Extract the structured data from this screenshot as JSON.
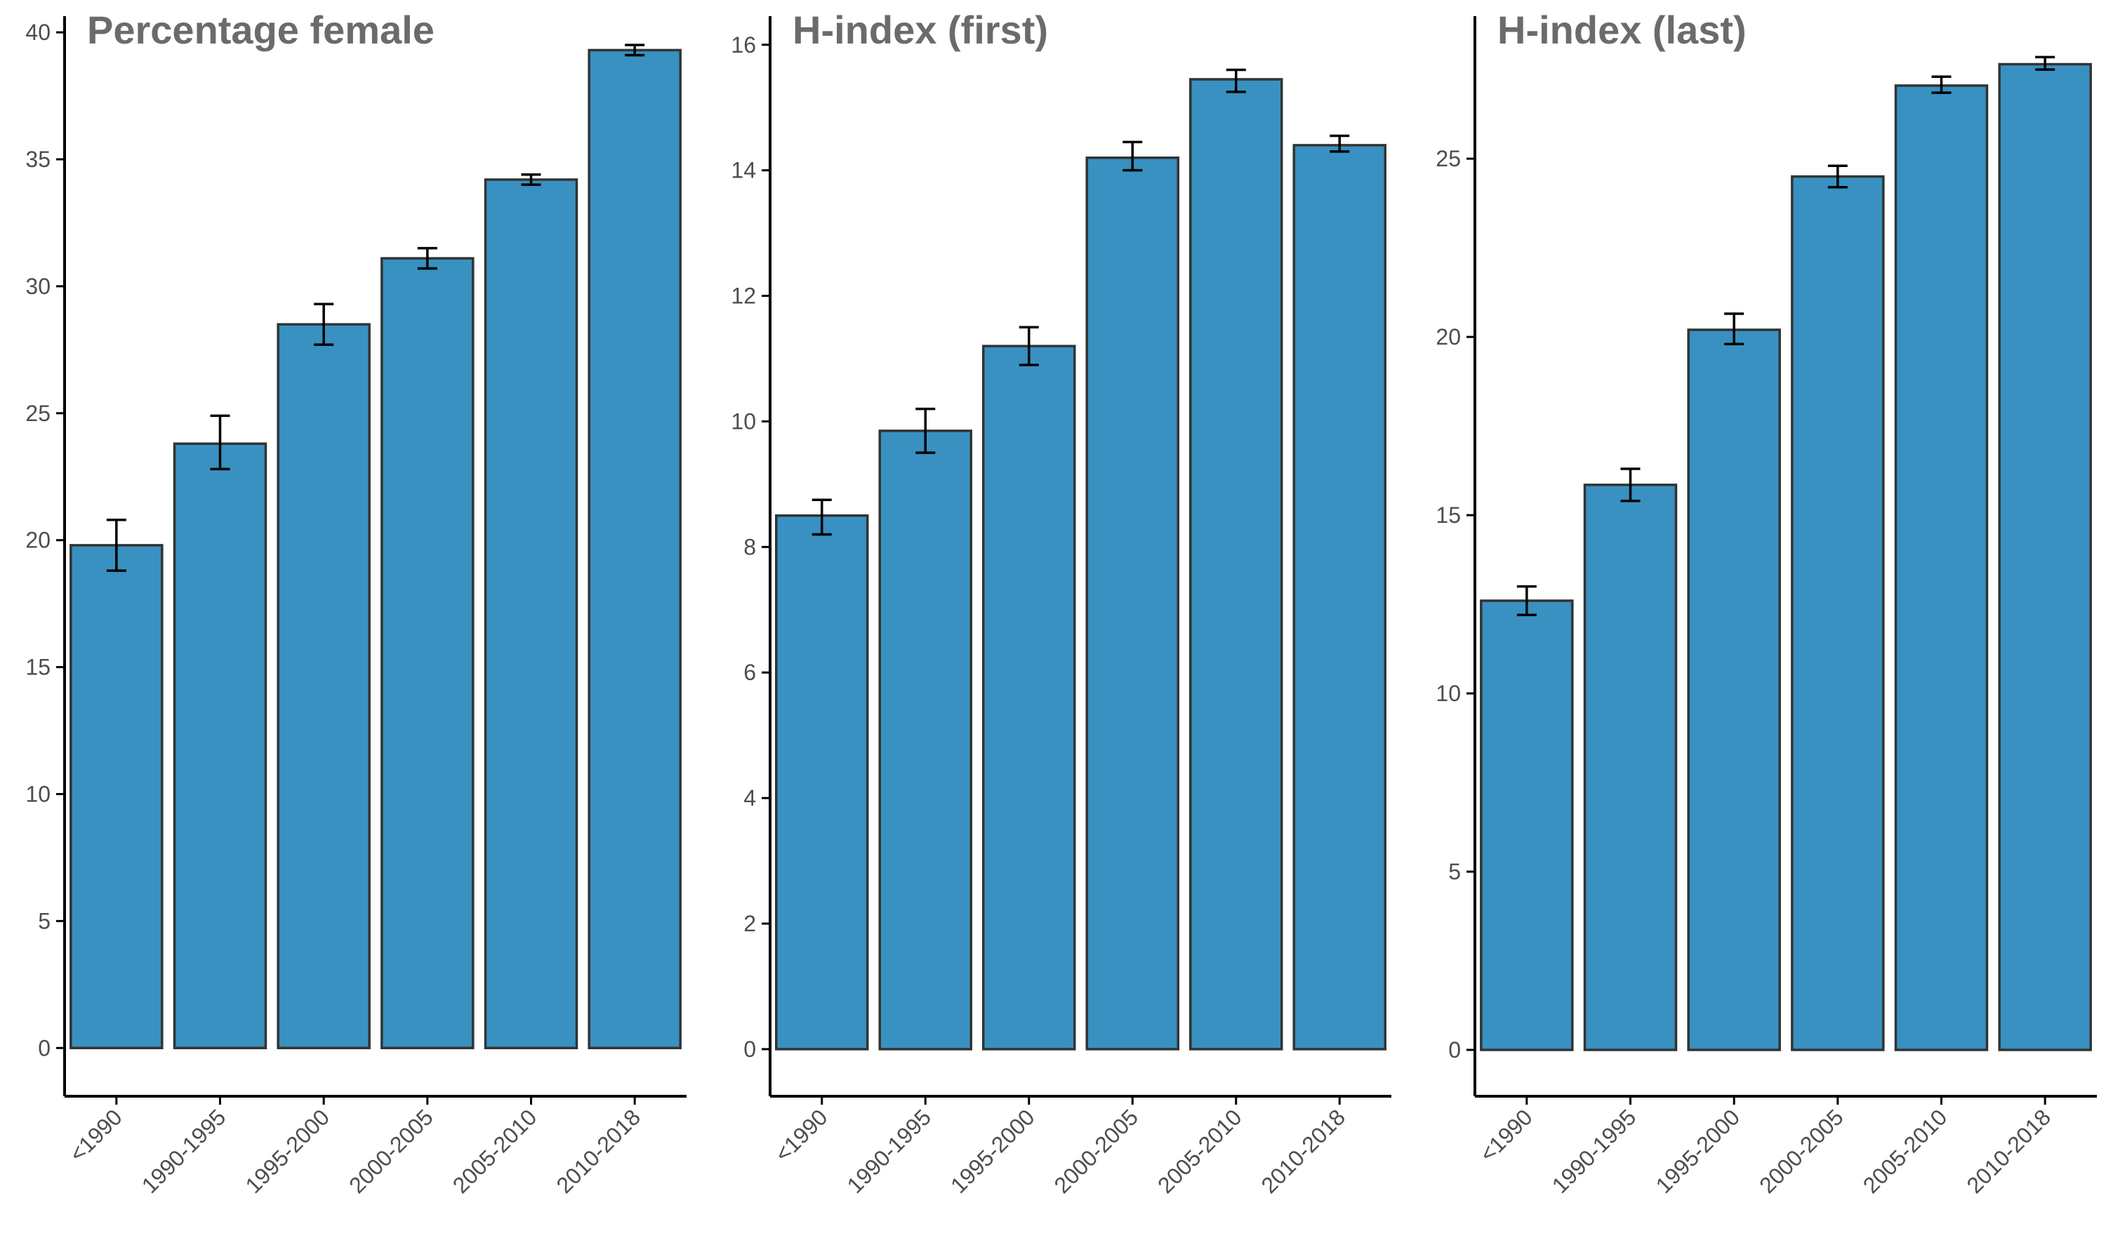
{
  "colors": {
    "bar_fill": "#3891c1",
    "bar_stroke": "#333333"
  },
  "chart_data": [
    {
      "type": "bar",
      "title": "Percentage female",
      "xlabel": "",
      "ylabel": "",
      "categories": [
        "<1990",
        "1990-1995",
        "1995-2000",
        "2000-2005",
        "2005-2010",
        "2010-2018"
      ],
      "values": [
        19.8,
        23.8,
        28.5,
        31.1,
        34.2,
        39.3
      ],
      "error_low": [
        18.8,
        22.8,
        27.7,
        30.7,
        34.0,
        39.1
      ],
      "error_high": [
        20.8,
        24.9,
        29.3,
        31.5,
        34.4,
        39.5
      ],
      "ylim": [
        -1.9,
        40.5
      ],
      "yticks": [
        0,
        5,
        10,
        15,
        20,
        25,
        30,
        35,
        40
      ],
      "grid": false,
      "legend": "none"
    },
    {
      "type": "bar",
      "title": "H-index (first)",
      "xlabel": "",
      "ylabel": "",
      "categories": [
        "<1990",
        "1990-1995",
        "1995-2000",
        "2000-2005",
        "2005-2010",
        "2010-2018"
      ],
      "values": [
        8.5,
        9.85,
        11.2,
        14.2,
        15.45,
        14.4
      ],
      "error_low": [
        8.2,
        9.5,
        10.9,
        14.0,
        15.25,
        14.3
      ],
      "error_high": [
        8.75,
        10.2,
        11.5,
        14.45,
        15.6,
        14.55
      ],
      "ylim": [
        -0.75,
        16.4
      ],
      "yticks": [
        0,
        2,
        4,
        6,
        8,
        10,
        12,
        14,
        16
      ],
      "grid": false,
      "legend": "none"
    },
    {
      "type": "bar",
      "title": "H-index (last)",
      "xlabel": "",
      "ylabel": "",
      "categories": [
        "<1990",
        "1990-1995",
        "1995-2000",
        "2000-2005",
        "2005-2010",
        "2010-2018"
      ],
      "values": [
        12.6,
        15.85,
        20.2,
        24.5,
        27.05,
        27.65
      ],
      "error_low": [
        12.2,
        15.4,
        19.8,
        24.2,
        26.85,
        27.5
      ],
      "error_high": [
        13.0,
        16.3,
        20.65,
        24.8,
        27.3,
        27.85
      ],
      "ylim": [
        -1.3,
        28.9
      ],
      "yticks": [
        0,
        5,
        10,
        15,
        20,
        25
      ],
      "grid": false,
      "legend": "none"
    }
  ]
}
